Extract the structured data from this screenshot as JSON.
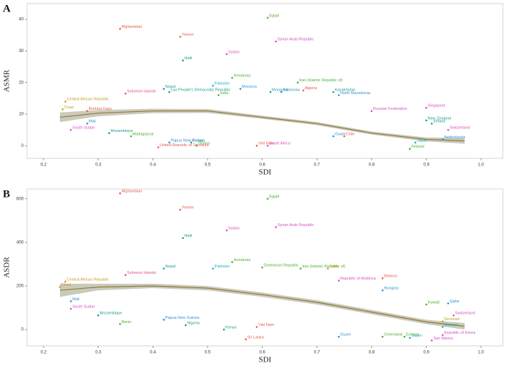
{
  "chart_data": [
    {
      "type": "scatter",
      "panel": "A",
      "x_label": "SDI",
      "y_label": "ASMR",
      "xlim": [
        0.17,
        1.04
      ],
      "ylim": [
        -4,
        45
      ],
      "xticks": [
        0.2,
        0.3,
        0.4,
        0.5,
        0.6,
        0.7,
        0.8,
        0.9,
        {
          "value": 1,
          "label": "1.0"
        }
      ],
      "yticks": [
        0,
        10,
        20,
        30,
        40
      ],
      "points": [
        {
          "label": "Afghanistan",
          "x": 0.34,
          "y": 37,
          "color": "#e8594a"
        },
        {
          "label": "Egypt",
          "x": 0.61,
          "y": 40.5,
          "color": "#4caf2f"
        },
        {
          "label": "Yemen",
          "x": 0.45,
          "y": 34.5,
          "color": "#e8594a"
        },
        {
          "label": "Syrian Arab Republic",
          "x": 0.625,
          "y": 33,
          "color": "#d64fc7"
        },
        {
          "label": "Sudan",
          "x": 0.535,
          "y": 29,
          "color": "#d64fc7"
        },
        {
          "label": "Haiti",
          "x": 0.455,
          "y": 27,
          "color": "#1a9e8f"
        },
        {
          "label": "Honduras",
          "x": 0.545,
          "y": 21.5,
          "color": "#4caf2f"
        },
        {
          "label": "Pakistan",
          "x": 0.51,
          "y": 19,
          "color": "#1ab0c9"
        },
        {
          "label": "Nepal",
          "x": 0.42,
          "y": 18,
          "color": "#1a9e8f"
        },
        {
          "label": "Lao People's Democratic Republic",
          "x": 0.43,
          "y": 17,
          "color": "#1a9e8f"
        },
        {
          "label": "Solomon Islands",
          "x": 0.35,
          "y": 16.5,
          "color": "#e84a8a"
        },
        {
          "label": "Morocco",
          "x": 0.56,
          "y": 18,
          "color": "#2f8fd6"
        },
        {
          "label": "India",
          "x": 0.52,
          "y": 16,
          "color": "#4caf2f"
        },
        {
          "label": "Mongolia",
          "x": 0.615,
          "y": 17,
          "color": "#1a9e8f"
        },
        {
          "label": "Indonesia",
          "x": 0.635,
          "y": 17,
          "color": "#2f8fd6"
        },
        {
          "label": "Iran (Islamic Republic of)",
          "x": 0.665,
          "y": 20,
          "color": "#4caf2f"
        },
        {
          "label": "Algeria",
          "x": 0.675,
          "y": 17.5,
          "color": "#e8594a"
        },
        {
          "label": "Kazakhstan",
          "x": 0.73,
          "y": 17,
          "color": "#1a9e8f"
        },
        {
          "label": "North Macedonia",
          "x": 0.74,
          "y": 16,
          "color": "#2f8fd6"
        },
        {
          "label": "Russian Federation",
          "x": 0.8,
          "y": 11,
          "color": "#d64fc7"
        },
        {
          "label": "Singapore",
          "x": 0.9,
          "y": 12,
          "color": "#d64fc7"
        },
        {
          "label": "New Zealand",
          "x": 0.9,
          "y": 8,
          "color": "#1a9e8f"
        },
        {
          "label": "Ireland",
          "x": 0.91,
          "y": 7,
          "color": "#1a9e8f"
        },
        {
          "label": "Switzerland",
          "x": 0.94,
          "y": 5,
          "color": "#d64fc7"
        },
        {
          "label": "Netherlands",
          "x": 0.93,
          "y": 2,
          "color": "#2f8fd6"
        },
        {
          "label": "Japan",
          "x": 0.88,
          "y": 1,
          "color": "#1ab0c9"
        },
        {
          "label": "Finland",
          "x": 0.87,
          "y": -1,
          "color": "#4caf2f"
        },
        {
          "label": "Chile",
          "x": 0.75,
          "y": 3,
          "color": "#e8594a"
        },
        {
          "label": "Guam",
          "x": 0.73,
          "y": 3,
          "color": "#2f8fd6"
        },
        {
          "label": "South Africa",
          "x": 0.61,
          "y": 0,
          "color": "#d64fc7"
        },
        {
          "label": "Viet Nam",
          "x": 0.59,
          "y": 0,
          "color": "#e8594a"
        },
        {
          "label": "Kenya",
          "x": 0.47,
          "y": 1,
          "color": "#1a9e8f"
        },
        {
          "label": "Ghana",
          "x": 0.48,
          "y": 0,
          "color": "#4caf2f"
        },
        {
          "label": "Chad",
          "x": 0.235,
          "y": 11.5,
          "color": "#c79a1f"
        },
        {
          "label": "Central African Republic",
          "x": 0.24,
          "y": 14,
          "color": "#c79a1f"
        },
        {
          "label": "Burkina Faso",
          "x": 0.28,
          "y": 11,
          "color": "#e8594a"
        },
        {
          "label": "Mali",
          "x": 0.28,
          "y": 7,
          "color": "#2f8fd6"
        },
        {
          "label": "South Sudan",
          "x": 0.25,
          "y": 5,
          "color": "#d64fc7"
        },
        {
          "label": "Mozambique",
          "x": 0.32,
          "y": 4,
          "color": "#1a9e8f"
        },
        {
          "label": "Madagascar",
          "x": 0.36,
          "y": 3,
          "color": "#4caf2f"
        },
        {
          "label": "Papua New Guinea",
          "x": 0.43,
          "y": 1,
          "color": "#2f8fd6"
        },
        {
          "label": "United Republic of Tanzania",
          "x": 0.41,
          "y": -0.5,
          "color": "#e8594a"
        }
      ],
      "fit": {
        "x": [
          0.23,
          0.3,
          0.4,
          0.5,
          0.6,
          0.7,
          0.8,
          0.9,
          0.97
        ],
        "y": [
          9,
          10.3,
          11,
          11,
          9,
          7,
          4,
          2,
          1.5
        ],
        "lower": [
          7.5,
          9.3,
          10.3,
          10.4,
          8.5,
          6.5,
          3.5,
          1.4,
          0.6
        ],
        "upper": [
          10.5,
          11.3,
          11.7,
          11.6,
          9.5,
          7.5,
          4.5,
          2.6,
          2.4
        ]
      }
    },
    {
      "type": "scatter",
      "panel": "B",
      "x_label": "SDI",
      "y_label": "ASDR",
      "xlim": [
        0.17,
        1.04
      ],
      "ylim": [
        -75,
        645
      ],
      "xticks": [
        0.2,
        0.3,
        0.4,
        0.5,
        0.6,
        0.7,
        0.8,
        0.9,
        {
          "value": 1,
          "label": "1.0"
        }
      ],
      "yticks": [
        0,
        200,
        400,
        600
      ],
      "points": [
        {
          "label": "Afghanistan",
          "x": 0.34,
          "y": 625,
          "color": "#e8594a"
        },
        {
          "label": "Egypt",
          "x": 0.61,
          "y": 600,
          "color": "#4caf2f"
        },
        {
          "label": "Yemen",
          "x": 0.45,
          "y": 550,
          "color": "#e8594a"
        },
        {
          "label": "Sudan",
          "x": 0.535,
          "y": 455,
          "color": "#d64fc7"
        },
        {
          "label": "Syrian Arab Republic",
          "x": 0.625,
          "y": 470,
          "color": "#d64fc7"
        },
        {
          "label": "Haiti",
          "x": 0.455,
          "y": 420,
          "color": "#1a9e8f"
        },
        {
          "label": "Honduras",
          "x": 0.545,
          "y": 310,
          "color": "#4caf2f"
        },
        {
          "label": "Nepal",
          "x": 0.42,
          "y": 280,
          "color": "#1a9e8f"
        },
        {
          "label": "Pakistan",
          "x": 0.51,
          "y": 280,
          "color": "#1ab0c9"
        },
        {
          "label": "Solomon Islands",
          "x": 0.35,
          "y": 250,
          "color": "#e84a8a"
        },
        {
          "label": "Central African Republic",
          "x": 0.24,
          "y": 220,
          "color": "#c79a1f"
        },
        {
          "label": "Chad",
          "x": 0.23,
          "y": 195,
          "color": "#c79a1f"
        },
        {
          "label": "Mali",
          "x": 0.25,
          "y": 130,
          "color": "#2f8fd6"
        },
        {
          "label": "South Sudan",
          "x": 0.25,
          "y": 95,
          "color": "#d64fc7"
        },
        {
          "label": "Mozambique",
          "x": 0.3,
          "y": 65,
          "color": "#1a9e8f"
        },
        {
          "label": "Benin",
          "x": 0.34,
          "y": 25,
          "color": "#4caf2f"
        },
        {
          "label": "Papua New Guinea",
          "x": 0.42,
          "y": 45,
          "color": "#2f8fd6"
        },
        {
          "label": "Nigeria",
          "x": 0.46,
          "y": 20,
          "color": "#1a9e8f"
        },
        {
          "label": "Kenya",
          "x": 0.53,
          "y": 0,
          "color": "#1a9e8f"
        },
        {
          "label": "Dominican Republic",
          "x": 0.6,
          "y": 285,
          "color": "#4caf2f"
        },
        {
          "label": "Iran (Islamic Republic of)",
          "x": 0.67,
          "y": 280,
          "color": "#4caf2f"
        },
        {
          "label": "Cuba",
          "x": 0.72,
          "y": 280,
          "color": "#c79a1f"
        },
        {
          "label": "Republic of Moldova",
          "x": 0.74,
          "y": 225,
          "color": "#d64fc7"
        },
        {
          "label": "Belarus",
          "x": 0.82,
          "y": 235,
          "color": "#e8594a"
        },
        {
          "label": "Hungary",
          "x": 0.82,
          "y": 180,
          "color": "#2f8fd6"
        },
        {
          "label": "Kuwait",
          "x": 0.9,
          "y": 115,
          "color": "#4caf2f"
        },
        {
          "label": "Qatar",
          "x": 0.94,
          "y": 120,
          "color": "#2f8fd6"
        },
        {
          "label": "Switzerland",
          "x": 0.95,
          "y": 65,
          "color": "#d64fc7"
        },
        {
          "label": "Denmark",
          "x": 0.93,
          "y": 37,
          "color": "#c79a1f"
        },
        {
          "label": "Monaco",
          "x": 0.93,
          "y": 12,
          "color": "#1ab0c9"
        },
        {
          "label": "Republic of Korea",
          "x": 0.93,
          "y": -25,
          "color": "#d64fc7"
        },
        {
          "label": "San Marino",
          "x": 0.91,
          "y": -50,
          "color": "#d64fc7"
        },
        {
          "label": "Japan",
          "x": 0.87,
          "y": -38,
          "color": "#1ab0c9"
        },
        {
          "label": "Estonia",
          "x": 0.86,
          "y": -33,
          "color": "#4caf2f"
        },
        {
          "label": "Greenland",
          "x": 0.82,
          "y": -33,
          "color": "#4caf2f"
        },
        {
          "label": "Guam",
          "x": 0.74,
          "y": -33,
          "color": "#2f8fd6"
        },
        {
          "label": "Viet Nam",
          "x": 0.59,
          "y": 12,
          "color": "#e8594a"
        },
        {
          "label": "Sri Lanka",
          "x": 0.57,
          "y": -45,
          "color": "#e8594a"
        }
      ],
      "fit": {
        "x": [
          0.23,
          0.3,
          0.4,
          0.5,
          0.6,
          0.7,
          0.8,
          0.9,
          0.97
        ],
        "y": [
          180,
          195,
          200,
          190,
          160,
          125,
          80,
          35,
          15
        ],
        "lower": [
          150,
          180,
          190,
          180,
          150,
          115,
          70,
          25,
          0
        ],
        "upper": [
          210,
          210,
          210,
          200,
          170,
          135,
          90,
          45,
          30
        ]
      }
    }
  ]
}
